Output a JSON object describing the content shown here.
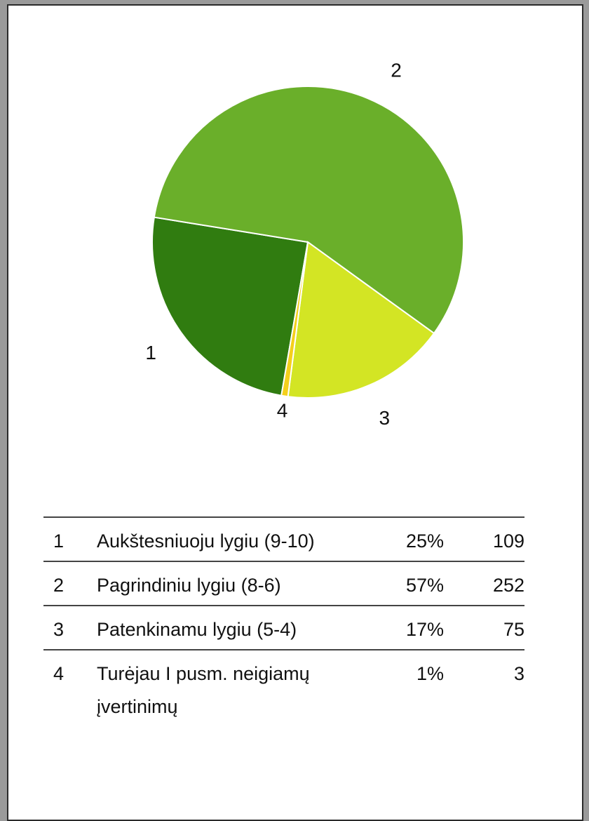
{
  "chart_data": {
    "type": "pie",
    "categories": [
      "1",
      "2",
      "3",
      "4"
    ],
    "values": [
      109,
      252,
      75,
      3
    ],
    "colors": [
      "#307c10",
      "#6aaf2a",
      "#d3e524",
      "#f4d01c"
    ],
    "names": [
      "Aukštesniuoju lygiu (9-10)",
      "Pagrindiniu lygiu (8-6)",
      "Patenkinamu lygiu (5-4)",
      "Turėjau I pusm. neigiamų įvertinimų"
    ],
    "percents": [
      25,
      57,
      17,
      1
    ],
    "percent_labels": [
      "25%",
      "57%",
      "17%",
      "1%"
    ]
  }
}
